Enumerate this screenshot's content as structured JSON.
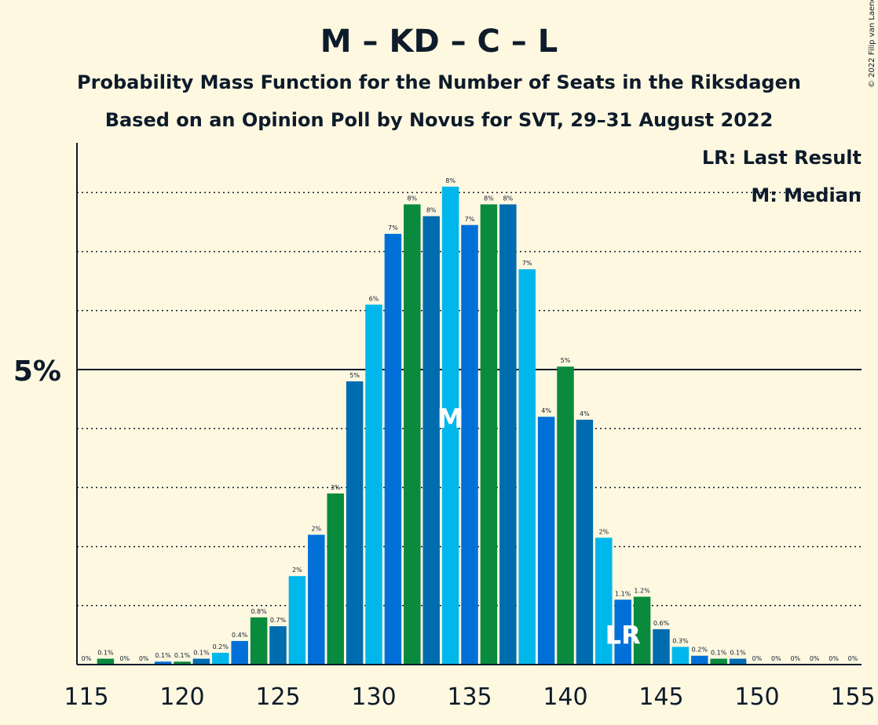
{
  "title": "M – KD – C – L",
  "subtitle1": "Probability Mass Function for the Number of Seats in the Riksdagen",
  "subtitle2": "Based on an Opinion Poll by Novus for SVT, 29–31 August 2022",
  "copyright": "© 2022 Filip van Laenen",
  "legend": {
    "lr": "LR: Last Result",
    "median": "M: Median"
  },
  "markers": {
    "median_label": "M",
    "last_result_label": "LR"
  },
  "colors": {
    "background": "#fef8e1",
    "palette": [
      "#0a8a3c",
      "#006cb0",
      "#00b7ec",
      "#0070d8"
    ]
  },
  "chart_data": {
    "type": "bar",
    "x": [
      115,
      116,
      117,
      118,
      119,
      120,
      121,
      122,
      123,
      124,
      125,
      126,
      127,
      128,
      129,
      130,
      131,
      132,
      133,
      134,
      135,
      136,
      137,
      138,
      139,
      140,
      141,
      142,
      143,
      144,
      145,
      146,
      147,
      148,
      149,
      150,
      151,
      152,
      153,
      154,
      155
    ],
    "values": [
      0,
      0.1,
      0,
      0,
      0.05,
      0.05,
      0.1,
      0.2,
      0.4,
      0.8,
      0.65,
      1.5,
      2.2,
      2.9,
      4.8,
      6.1,
      7.3,
      7.8,
      7.6,
      8.1,
      7.45,
      7.8,
      7.8,
      6.7,
      4.2,
      5.05,
      4.15,
      2.15,
      1.1,
      1.15,
      0.6,
      0.3,
      0.15,
      0.1,
      0.1,
      0,
      0,
      0,
      0,
      0,
      0
    ],
    "data_labels": [
      "0%",
      "0.1%",
      "0%",
      "0%",
      "0.1%",
      "0.1%",
      "0.1%",
      "0.2%",
      "0.4%",
      "0.8%",
      "0.7%",
      "2%",
      "2%",
      "3%",
      "5%",
      "6%",
      "7%",
      "8%",
      "8%",
      "8%",
      "7%",
      "8%",
      "8%",
      "7%",
      "4%",
      "5%",
      "4%",
      "2%",
      "1.1%",
      "1.2%",
      "0.6%",
      "0.3%",
      "0.2%",
      "0.1%",
      "0.1%",
      "0%",
      "0%",
      "0%",
      "0%",
      "0%",
      "0%"
    ],
    "xticks": [
      115,
      120,
      125,
      130,
      135,
      140,
      145,
      150,
      155
    ],
    "ytick_label": "5%",
    "ylim": [
      0,
      8.8
    ],
    "median": 134,
    "last_result": 143,
    "grid": true,
    "legend_position": "top-right"
  }
}
